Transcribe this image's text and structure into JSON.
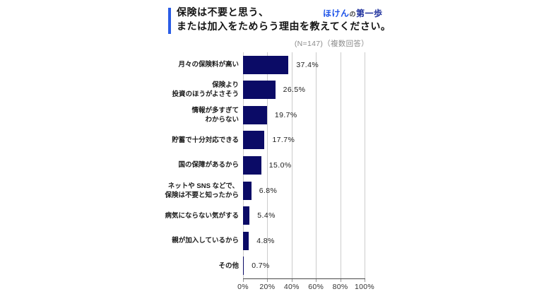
{
  "header": {
    "title_lines": [
      "保険は不要と思う、",
      "または加入をためらう理由を教えてください。"
    ],
    "brand": {
      "part_hoken": "ほけん",
      "part_no": "の",
      "part_daiippo": "第一歩"
    },
    "note": "(N=147)（複数回答）"
  },
  "colors": {
    "accent_blue": "#2a5ce6",
    "brand_blue": "#1d53e8",
    "brand_dark": "#3a3a3a",
    "brand_navy": "#1b2d9b",
    "bar_navy": "#0b0b66"
  },
  "chart_data": {
    "type": "bar",
    "orientation": "horizontal",
    "title": "保険は不要と思う、または加入をためらう理由を教えてください。",
    "sample_note": "(N=147)（複数回答）",
    "xlabel": "",
    "ylabel": "",
    "xlim": [
      0,
      100
    ],
    "grid": true,
    "x_ticks": [
      0,
      20,
      40,
      60,
      80,
      100
    ],
    "x_tick_labels": [
      "0%",
      "20%",
      "40%",
      "60%",
      "80%",
      "100%"
    ],
    "items": [
      {
        "lines": [
          "月々の保険料が高い"
        ],
        "value": 37.4,
        "value_label": "37.4%"
      },
      {
        "lines": [
          "保険より",
          "投資のほうがよさそう"
        ],
        "value": 26.5,
        "value_label": "26.5%"
      },
      {
        "lines": [
          "情報が多すぎて",
          "わからない"
        ],
        "value": 19.7,
        "value_label": "19.7%"
      },
      {
        "lines": [
          "貯蓄で十分対応できる"
        ],
        "value": 17.7,
        "value_label": "17.7%"
      },
      {
        "lines": [
          "国の保障があるから"
        ],
        "value": 15.0,
        "value_label": "15.0%"
      },
      {
        "lines": [
          "ネットや SNS などで、",
          "保険は不要と知ったから"
        ],
        "value": 6.8,
        "value_label": "6.8%"
      },
      {
        "lines": [
          "病気にならない気がする"
        ],
        "value": 5.4,
        "value_label": "5.4%"
      },
      {
        "lines": [
          "親が加入しているから"
        ],
        "value": 4.8,
        "value_label": "4.8%"
      },
      {
        "lines": [
          "その他"
        ],
        "value": 0.7,
        "value_label": "0.7%"
      }
    ]
  }
}
